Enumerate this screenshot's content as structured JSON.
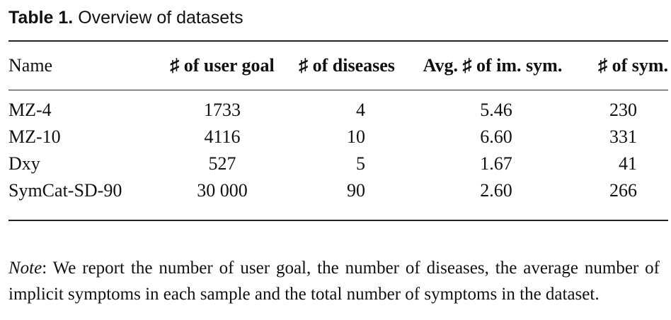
{
  "caption": {
    "label": "Table 1.",
    "text": " Overview of datasets"
  },
  "table": {
    "headers": {
      "name": "Name",
      "user_goal": "♯ of user goal",
      "diseases": "♯ of diseases",
      "avg_im_sym": "Avg. ♯ of im. sym.",
      "sym": "♯ of sym."
    },
    "rows": [
      {
        "name": "MZ-4",
        "user_goal": "1733",
        "diseases": "4",
        "avg_im_sym": "5.46",
        "sym": "230"
      },
      {
        "name": "MZ-10",
        "user_goal": "4116",
        "diseases": "10",
        "avg_im_sym": "6.60",
        "sym": "331"
      },
      {
        "name": "Dxy",
        "user_goal": "527",
        "diseases": "5",
        "avg_im_sym": "1.67",
        "sym": "41"
      },
      {
        "name": "SymCat-SD-90",
        "user_goal": "30 000",
        "diseases": "90",
        "avg_im_sym": "2.60",
        "sym": "266"
      }
    ]
  },
  "note": {
    "label": "Note",
    "text": ": We report the number of user goal, the number of diseases, the average number of implicit symptoms in each sample and the total number of symptoms in the dataset."
  }
}
